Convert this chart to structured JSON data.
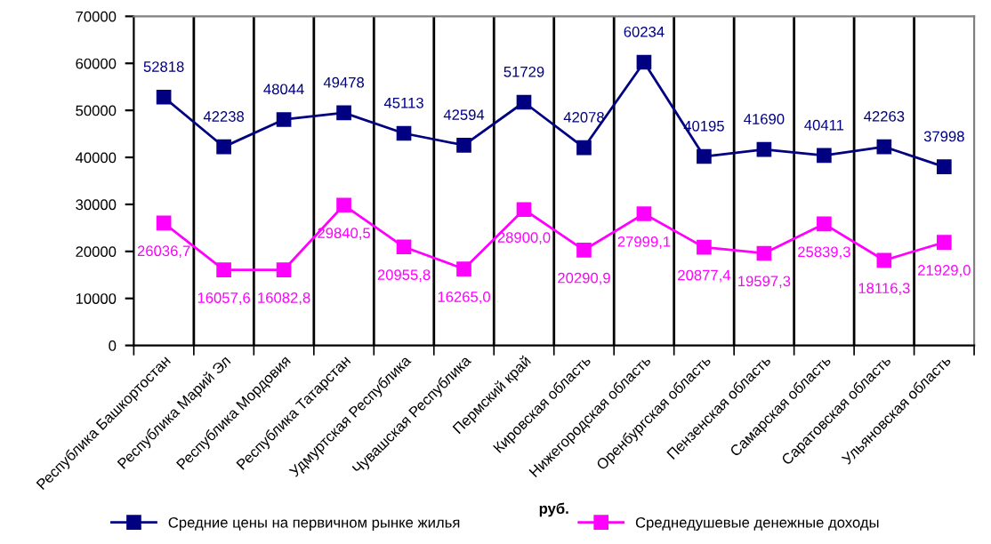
{
  "chart_data": {
    "type": "line",
    "xlabel": "руб.",
    "categories": [
      "Республика Башкортостан",
      "Республика Марий Эл",
      "Республика Мордовия",
      "Республика Татарстан",
      "Удмуртская Республика",
      "Чувашская Республика",
      "Пермский край",
      "Кировская область",
      "Нижегородская область",
      "Оренбургская область",
      "Пензенская область",
      "Самарская область",
      "Саратовская область",
      "Ульяновская область"
    ],
    "series": [
      {
        "name": "Средние цены на первичном рынке жилья",
        "color": "#000080",
        "values": [
          52818,
          42238,
          48044,
          49478,
          45113,
          42594,
          51729,
          42078,
          60234,
          40195,
          41690,
          40411,
          42263,
          37998
        ],
        "data_labels": true
      },
      {
        "name": "Среднедушевые денежные доходы",
        "color": "#ff00ff",
        "values": [
          26036.7,
          16057.6,
          16082.8,
          29840.5,
          20955.8,
          16265.0,
          28900.0,
          20290.9,
          27999.1,
          20877.4,
          19597.3,
          25839.3,
          18116.3,
          21929.0
        ],
        "value_labels": [
          "26036,7",
          "16057,6",
          "16082,8",
          "29840,5",
          "20955,8",
          "16265,0",
          "28900,0",
          "20290,9",
          "27999,1",
          "20877,4",
          "19597,3",
          "25839,3",
          "18116,3",
          "21929,0"
        ]
      }
    ],
    "ylim": [
      0,
      70000
    ],
    "yticks": [
      0,
      10000,
      20000,
      30000,
      40000,
      50000,
      60000,
      70000
    ],
    "grid": "x",
    "legend": "bottom",
    "marker": "square",
    "line_style": "solid"
  }
}
